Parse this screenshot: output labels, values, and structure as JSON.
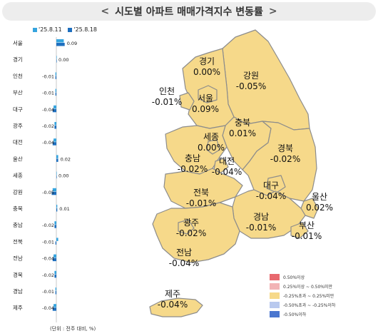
{
  "title": "시도별 아파트 매매가격지수 변동률",
  "title_arrow_left": "<",
  "title_arrow_right": ">",
  "series_labels": [
    "'25.8.11",
    "'25.8.18"
  ],
  "footnote": "(단위 : 전주 대비, %)",
  "colors": {
    "series_prev": "#35a4de",
    "series_curr": "#1e6fbf",
    "map_fill": "#f6d98a",
    "map_stroke": "#8c8c8c"
  },
  "chart_data": {
    "type": "bar",
    "orientation": "horizontal",
    "categories": [
      "서울",
      "경기",
      "인천",
      "부산",
      "대구",
      "광주",
      "대전",
      "울산",
      "세종",
      "강원",
      "충북",
      "충남",
      "전북",
      "전남",
      "경북",
      "경남",
      "제주"
    ],
    "series": [
      {
        "name": "'25.8.11",
        "values": [
          0.08,
          0.0,
          -0.01,
          -0.01,
          -0.03,
          -0.02,
          -0.03,
          0.02,
          0.0,
          -0.04,
          0.01,
          -0.02,
          0.02,
          -0.03,
          -0.02,
          -0.01,
          -0.03
        ]
      },
      {
        "name": "'25.8.18",
        "values": [
          0.09,
          0.0,
          -0.01,
          -0.01,
          -0.04,
          -0.02,
          -0.04,
          0.02,
          0.0,
          -0.05,
          0.01,
          -0.02,
          -0.01,
          -0.04,
          -0.02,
          -0.01,
          -0.04
        ]
      }
    ],
    "data_labels": [
      "0.09",
      "0.00",
      "-0.01",
      "-0.01",
      "-0.04",
      "-0.02",
      "-0.04",
      "0.02",
      "0.00",
      "-0.05",
      "0.01",
      "-0.02",
      "-0.01",
      "-0.04",
      "-0.02",
      "-0.01",
      "-0.04"
    ],
    "xlim": [
      -0.06,
      0.1
    ]
  },
  "map_regions": [
    {
      "name": "경기",
      "value": "0.00%"
    },
    {
      "name": "강원",
      "value": "-0.05%"
    },
    {
      "name": "인천",
      "value": "-0.01%"
    },
    {
      "name": "서울",
      "value": "0.09%"
    },
    {
      "name": "충북",
      "value": "0.01%"
    },
    {
      "name": "세종",
      "value": "0.00%"
    },
    {
      "name": "충남",
      "value": "-0.02%"
    },
    {
      "name": "대전",
      "value": "-0.04%"
    },
    {
      "name": "경북",
      "value": "-0.02%"
    },
    {
      "name": "전북",
      "value": "-0.01%"
    },
    {
      "name": "대구",
      "value": "-0.04%"
    },
    {
      "name": "울산",
      "value": "0.02%"
    },
    {
      "name": "광주",
      "value": "-0.02%"
    },
    {
      "name": "경남",
      "value": "-0.01%"
    },
    {
      "name": "부산",
      "value": "-0.01%"
    },
    {
      "name": "전남",
      "value": "-0.04%"
    },
    {
      "name": "제주",
      "value": "-0.04%"
    }
  ],
  "color_legend": [
    {
      "label": "0.50%이상",
      "color": "#e8686e"
    },
    {
      "label": "0.25%이상 ~ 0.50%미만",
      "color": "#f2b3b5"
    },
    {
      "label": "-0.25%초과 ~ 0.25%미만",
      "color": "#f6d98a"
    },
    {
      "label": "-0.50%초과 ~ -0.25%이하",
      "color": "#b9c9ee"
    },
    {
      "label": "-0.50%이하",
      "color": "#4a76cf"
    }
  ]
}
